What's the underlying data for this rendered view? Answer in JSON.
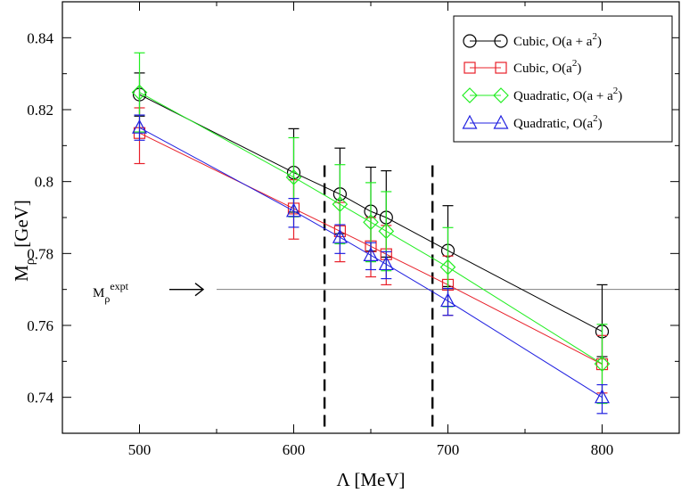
{
  "chart_data": {
    "type": "line",
    "xlabel": "Λ   [MeV]",
    "ylabel_main": "M",
    "ylabel_sub": "ρ",
    "ylabel_unit": "[GeV]",
    "xlim": [
      450,
      850
    ],
    "ylim": [
      0.73,
      0.85
    ],
    "x_ticks": [
      500,
      600,
      700,
      800
    ],
    "y_ticks": [
      0.74,
      0.76,
      0.78,
      0.8,
      0.82,
      0.84
    ],
    "y_tick_labels": [
      "0.74",
      "0.76",
      "0.78",
      "0.8",
      "0.82",
      "0.84"
    ],
    "grid": false,
    "legend_position": "top-right",
    "series": [
      {
        "name": "Cubic, O(a + a²)",
        "label_base": "Cubic, O(a + a",
        "label_sup": "2",
        "label_end": ")",
        "color": "#000000",
        "marker": "circle",
        "x": [
          500,
          600,
          630,
          650,
          660,
          700,
          800
        ],
        "y": [
          0.8242,
          0.8025,
          0.7965,
          0.7917,
          0.79,
          0.7808,
          0.7583
        ],
        "err_up": [
          0.006,
          0.0122,
          0.0128,
          0.0123,
          0.013,
          0.0125,
          0.013
        ],
        "err_dn": [
          0.006,
          0.011,
          0.011,
          0.011,
          0.011,
          0.01,
          0.007
        ]
      },
      {
        "name": "Cubic, O(a²)",
        "label_base": "Cubic, O(a",
        "label_sup": "2",
        "label_end": ")",
        "color": "#e8202a",
        "marker": "square",
        "x": [
          500,
          600,
          630,
          650,
          660,
          700,
          800
        ],
        "y": [
          0.8135,
          0.7925,
          0.7862,
          0.782,
          0.7798,
          0.7713,
          0.7492
        ],
        "err_up": [
          0.007,
          0.008,
          0.008,
          0.008,
          0.008,
          0.008,
          0.008
        ],
        "err_dn": [
          0.0085,
          0.0085,
          0.0085,
          0.0085,
          0.0085,
          0.0085,
          0.008
        ]
      },
      {
        "name": "Quadratic, O(a + a²)",
        "label_base": "Quadratic, O(a + a",
        "label_sup": "2",
        "label_end": ")",
        "color": "#22ee22",
        "marker": "diamond",
        "x": [
          500,
          600,
          630,
          650,
          660,
          700,
          800
        ],
        "y": [
          0.8248,
          0.8012,
          0.7937,
          0.7887,
          0.7862,
          0.7762,
          0.7493
        ],
        "err_up": [
          0.011,
          0.011,
          0.011,
          0.011,
          0.011,
          0.011,
          0.011
        ],
        "err_dn": [
          0.011,
          0.011,
          0.011,
          0.011,
          0.011,
          0.011,
          0.011
        ]
      },
      {
        "name": "Quadratic, O(a²)",
        "label_base": "Quadratic, O(a",
        "label_sup": "2",
        "label_end": ")",
        "color": "#2020e0",
        "marker": "triangle",
        "x": [
          500,
          600,
          630,
          650,
          660,
          700,
          800
        ],
        "y": [
          0.815,
          0.7918,
          0.7845,
          0.7795,
          0.777,
          0.7668,
          0.74
        ],
        "err_up": [
          0.0035,
          0.0035,
          0.0035,
          0.0035,
          0.0035,
          0.0035,
          0.0035
        ],
        "err_dn": [
          0.0035,
          0.0045,
          0.0045,
          0.004,
          0.004,
          0.004,
          0.0045
        ]
      }
    ],
    "reference_line": {
      "y": 0.77,
      "x_from": 550,
      "x_to": 850,
      "color": "#808080",
      "label_main": "M",
      "label_sub": "ρ",
      "label_sup": "expt"
    },
    "dashed_lines_x": [
      620,
      690
    ]
  }
}
